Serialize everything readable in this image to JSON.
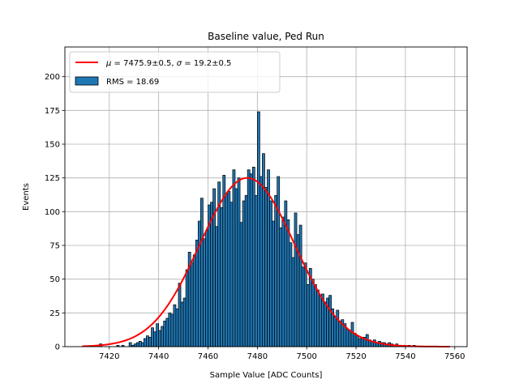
{
  "chart_data": {
    "type": "bar",
    "title": "Baseline value, Ped Run",
    "xlabel": "Sample Value [ADC Counts]",
    "ylabel": "Events",
    "xlim": [
      7402,
      7565
    ],
    "ylim": [
      0,
      222
    ],
    "xticks": [
      "7420",
      "7440",
      "7460",
      "7480",
      "7500",
      "7520",
      "7540",
      "7560"
    ],
    "xtick_values": [
      7420,
      7440,
      7460,
      7480,
      7500,
      7520,
      7540,
      7560
    ],
    "yticks": [
      "0",
      "25",
      "50",
      "75",
      "100",
      "125",
      "150",
      "175",
      "200"
    ],
    "ytick_values": [
      0,
      25,
      50,
      75,
      100,
      125,
      150,
      175,
      200
    ],
    "grid": true,
    "legend_position": "top-left",
    "histogram": {
      "name": "RMS = 18.69",
      "bin_start": 7409,
      "bin_width": 1,
      "counts": [
        0,
        0,
        0,
        0,
        0,
        0,
        0,
        2,
        0,
        0,
        0,
        0,
        0,
        0,
        1,
        0,
        1,
        0,
        0,
        3,
        1,
        2,
        3,
        4,
        3,
        6,
        8,
        7,
        14,
        11,
        17,
        12,
        15,
        19,
        21,
        25,
        24,
        31,
        28,
        47,
        33,
        36,
        57,
        70,
        62,
        68,
        79,
        93,
        110,
        80,
        86,
        105,
        107,
        117,
        89,
        122,
        103,
        127,
        113,
        115,
        107,
        131,
        117,
        125,
        92,
        108,
        112,
        131,
        128,
        133,
        112,
        174,
        126,
        143,
        118,
        131,
        108,
        93,
        112,
        126,
        88,
        96,
        108,
        94,
        77,
        66,
        99,
        83,
        90,
        59,
        62,
        46,
        58,
        50,
        46,
        42,
        38,
        39,
        33,
        36,
        38,
        28,
        22,
        27,
        19,
        20,
        17,
        13,
        12,
        18,
        10,
        8,
        6,
        7,
        7,
        9,
        5,
        4,
        5,
        3,
        4,
        3,
        3,
        2,
        3,
        2,
        1,
        2,
        1,
        1,
        1,
        0,
        1,
        0,
        1,
        0,
        0,
        0,
        0,
        0,
        0,
        0,
        0,
        0,
        0,
        0,
        0,
        0,
        0,
        0
      ]
    },
    "fit": {
      "name": "μ = 7475.9±0.5, σ = 19.2±0.5",
      "label_mu": "μ",
      "label_mu_text": " = 7475.9±0.5, ",
      "label_sigma": "σ",
      "label_sigma_text": " = 19.2±0.5",
      "mu": 7475.9,
      "sigma": 19.2,
      "amplitude": 125,
      "x_range": [
        7409,
        7558
      ],
      "color": "#ff0000"
    },
    "bar_color": "#1f77b4",
    "bar_edge_color": "#000000"
  }
}
